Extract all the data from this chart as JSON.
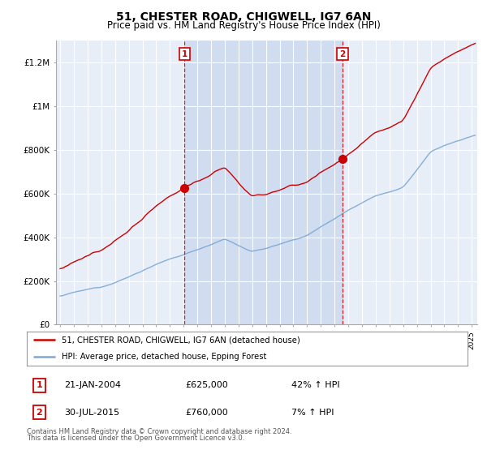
{
  "title": "51, CHESTER ROAD, CHIGWELL, IG7 6AN",
  "subtitle": "Price paid vs. HM Land Registry's House Price Index (HPI)",
  "title_fontsize": 10,
  "subtitle_fontsize": 8.5,
  "background_color": "#ffffff",
  "plot_bg_color": "#e8eef8",
  "shade_color": "#d0dcf0",
  "grid_color": "#ffffff",
  "ylabel_ticks": [
    "£0",
    "£200K",
    "£400K",
    "£600K",
    "£800K",
    "£1M",
    "£1.2M"
  ],
  "ytick_values": [
    0,
    200000,
    400000,
    600000,
    800000,
    1000000,
    1200000
  ],
  "ylim": [
    0,
    1300000
  ],
  "xlim_start": 1994.7,
  "xlim_end": 2025.4,
  "sale1_x": 2004.06,
  "sale1_y": 625000,
  "sale1_label": "1",
  "sale1_date": "21-JAN-2004",
  "sale1_price": "£625,000",
  "sale1_hpi": "42% ↑ HPI",
  "sale2_x": 2015.58,
  "sale2_y": 760000,
  "sale2_label": "2",
  "sale2_date": "30-JUL-2015",
  "sale2_price": "£760,000",
  "sale2_hpi": "7% ↑ HPI",
  "legend_line1": "51, CHESTER ROAD, CHIGWELL, IG7 6AN (detached house)",
  "legend_line2": "HPI: Average price, detached house, Epping Forest",
  "footer1": "Contains HM Land Registry data © Crown copyright and database right 2024.",
  "footer2": "This data is licensed under the Open Government Licence v3.0.",
  "red_line_color": "#cc0000",
  "blue_line_color": "#7aa8d4",
  "marker_box_color": "#cc0000"
}
